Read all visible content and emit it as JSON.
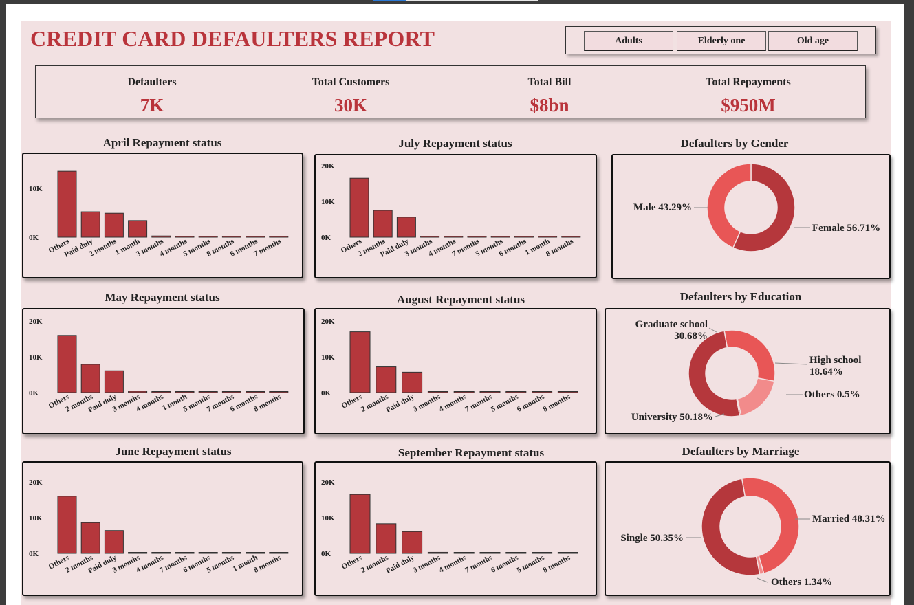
{
  "header": {
    "title": "CREDIT CARD DEFAULTERS REPORT"
  },
  "slicer": {
    "options": [
      "Adults",
      "Elderly one",
      "Old age"
    ]
  },
  "kpis": [
    {
      "label": "Defaulters",
      "value": "7K"
    },
    {
      "label": "Total Customers",
      "value": "30K"
    },
    {
      "label": "Total Bill",
      "value": "$8bn"
    },
    {
      "label": "Total Repayments",
      "value": "$950M"
    }
  ],
  "colors": {
    "bar": "#b5373c",
    "accent": "#b9343b",
    "background": "#f2e1e2",
    "donut_dark": "#b5373c",
    "donut_mid": "#e85656",
    "donut_light": "#f28b8b"
  },
  "chart_data": [
    {
      "id": "april",
      "type": "bar",
      "title": "April Repayment status",
      "categories": [
        "Others",
        "Paid duly",
        "2 months",
        "1 month",
        "3 months",
        "4 months",
        "5 months",
        "8 months",
        "6 months",
        "7 months"
      ],
      "values": [
        13500,
        5200,
        4900,
        3400,
        250,
        40,
        20,
        10,
        10,
        10
      ],
      "yticks": [
        "0K",
        "10K"
      ],
      "ylim": [
        0,
        15000
      ]
    },
    {
      "id": "july",
      "type": "bar",
      "title": "July Repayment status",
      "categories": [
        "Others",
        "2 months",
        "Paid duly",
        "3 months",
        "4 months",
        "7 months",
        "5 months",
        "6 months",
        "1 month",
        "8 months"
      ],
      "values": [
        16500,
        7500,
        5600,
        200,
        50,
        30,
        20,
        10,
        5,
        5
      ],
      "yticks": [
        "0K",
        "10K",
        "20K"
      ],
      "ylim": [
        0,
        20000
      ]
    },
    {
      "id": "may",
      "type": "bar",
      "title": "May Repayment status",
      "categories": [
        "Others",
        "2 months",
        "Paid duly",
        "3 months",
        "4 months",
        "1 month",
        "5 months",
        "7 months",
        "6 months",
        "8 months"
      ],
      "values": [
        16000,
        7900,
        6100,
        400,
        60,
        20,
        20,
        10,
        10,
        5
      ],
      "yticks": [
        "0K",
        "10K",
        "20K"
      ],
      "ylim": [
        0,
        20000
      ]
    },
    {
      "id": "august",
      "type": "bar",
      "title": "August Repayment status",
      "categories": [
        "Others",
        "2 months",
        "Paid duly",
        "3 months",
        "4 months",
        "7 months",
        "5 months",
        "6 months",
        "8 months"
      ],
      "values": [
        17000,
        7200,
        5700,
        200,
        50,
        30,
        20,
        10,
        5
      ],
      "yticks": [
        "0K",
        "10K",
        "20K"
      ],
      "ylim": [
        0,
        20000
      ]
    },
    {
      "id": "june",
      "type": "bar",
      "title": "June Repayment status",
      "categories": [
        "Others",
        "2 months",
        "Paid duly",
        "3 months",
        "4 months",
        "7 months",
        "6 months",
        "5 months",
        "1 month",
        "8 months"
      ],
      "values": [
        16000,
        8600,
        6400,
        200,
        60,
        30,
        20,
        20,
        5,
        5
      ],
      "yticks": [
        "0K",
        "10K",
        "20K"
      ],
      "ylim": [
        0,
        20000
      ]
    },
    {
      "id": "september",
      "type": "bar",
      "title": "September Repayment status",
      "categories": [
        "Others",
        "2 months",
        "Paid duly",
        "3 months",
        "4 months",
        "7 months",
        "6 months",
        "5 months",
        "8 months"
      ],
      "values": [
        16500,
        8300,
        6100,
        300,
        60,
        30,
        20,
        20,
        5
      ],
      "yticks": [
        "0K",
        "10K",
        "20K"
      ],
      "ylim": [
        0,
        20000
      ]
    },
    {
      "id": "gender",
      "type": "pie",
      "title": "Defaulters by Gender",
      "slices": [
        {
          "label": "Female 56.71%",
          "value": 56.71,
          "color": "#b5373c"
        },
        {
          "label": "Male 43.29%",
          "value": 43.29,
          "color": "#e85656"
        }
      ]
    },
    {
      "id": "education",
      "type": "pie",
      "title": "Defaulters by Education",
      "slices": [
        {
          "label": "Graduate school\n30.68%",
          "value": 30.68,
          "color": "#e85656"
        },
        {
          "label": "High school\n18.64%",
          "value": 18.64,
          "color": "#f28b8b"
        },
        {
          "label": "Others 0.5%",
          "value": 0.5,
          "color": "#d04848"
        },
        {
          "label": "University 50.18%",
          "value": 50.18,
          "color": "#b5373c"
        }
      ]
    },
    {
      "id": "marriage",
      "type": "pie",
      "title": "Defaulters by Marriage",
      "slices": [
        {
          "label": "Married 48.31%",
          "value": 48.31,
          "color": "#e85656"
        },
        {
          "label": "Others 1.34%",
          "value": 1.34,
          "color": "#f28b8b"
        },
        {
          "label": "Single 50.35%",
          "value": 50.35,
          "color": "#b5373c"
        }
      ]
    }
  ]
}
